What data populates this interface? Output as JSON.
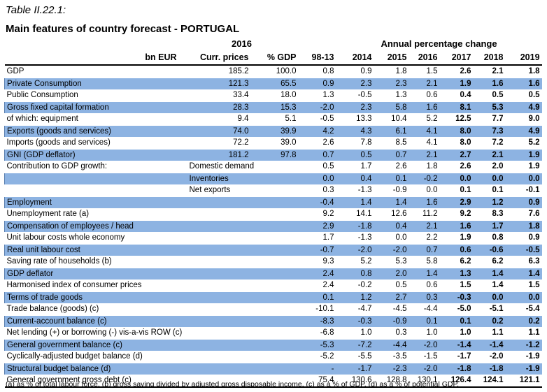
{
  "caption": "Table II.22.1:",
  "title": "Main features of country forecast - PORTUGAL",
  "header": {
    "year_2016": "2016",
    "annual_change": "Annual percentage change",
    "unit": "bn EUR",
    "curr_prices": "Curr. prices",
    "pct_gdp": "% GDP",
    "years": [
      "98-13",
      "2014",
      "2015",
      "2016",
      "2017",
      "2018",
      "2019"
    ]
  },
  "rows": [
    {
      "label": "GDP",
      "sub": "",
      "cp": "185.2",
      "pg": "100.0",
      "v": [
        "0.8",
        "0.9",
        "1.8",
        "1.5",
        "2.6",
        "2.1",
        "1.8"
      ],
      "band": false
    },
    {
      "label": "Private Consumption",
      "sub": "",
      "cp": "121.3",
      "pg": "65.5",
      "v": [
        "0.9",
        "2.3",
        "2.3",
        "2.1",
        "1.9",
        "1.6",
        "1.6"
      ],
      "band": true
    },
    {
      "label": "Public Consumption",
      "sub": "",
      "cp": "33.4",
      "pg": "18.0",
      "v": [
        "1.3",
        "-0.5",
        "1.3",
        "0.6",
        "0.4",
        "0.5",
        "0.5"
      ],
      "band": false
    },
    {
      "label": "Gross fixed capital formation",
      "sub": "",
      "cp": "28.3",
      "pg": "15.3",
      "v": [
        "-2.0",
        "2.3",
        "5.8",
        "1.6",
        "8.1",
        "5.3",
        "4.9"
      ],
      "band": true
    },
    {
      "label": "of which: equipment",
      "sub": "",
      "cp": "9.4",
      "pg": "5.1",
      "v": [
        "-0.5",
        "13.3",
        "10.4",
        "5.2",
        "12.5",
        "7.7",
        "9.0"
      ],
      "band": false
    },
    {
      "label": "Exports (goods and services)",
      "sub": "",
      "cp": "74.0",
      "pg": "39.9",
      "v": [
        "4.2",
        "4.3",
        "6.1",
        "4.1",
        "8.0",
        "7.3",
        "4.9"
      ],
      "band": true
    },
    {
      "label": "Imports (goods and services)",
      "sub": "",
      "cp": "72.2",
      "pg": "39.0",
      "v": [
        "2.6",
        "7.8",
        "8.5",
        "4.1",
        "8.0",
        "7.2",
        "5.2"
      ],
      "band": false
    },
    {
      "label": "GNI (GDP deflator)",
      "sub": "",
      "cp": "181.2",
      "pg": "97.8",
      "v": [
        "0.7",
        "0.5",
        "0.7",
        "2.1",
        "2.7",
        "2.1",
        "1.9"
      ],
      "band": true
    },
    {
      "label": "Contribution to GDP growth:",
      "sub": "Domestic demand",
      "cp": "",
      "pg": "",
      "v": [
        "0.5",
        "1.7",
        "2.6",
        "1.8",
        "2.6",
        "2.0",
        "1.9"
      ],
      "band": false
    },
    {
      "label": "",
      "sub": "Inventories",
      "cp": "",
      "pg": "",
      "v": [
        "0.0",
        "0.4",
        "0.1",
        "-0.2",
        "0.0",
        "0.0",
        "0.0"
      ],
      "band": true
    },
    {
      "label": "",
      "sub": "Net exports",
      "cp": "",
      "pg": "",
      "v": [
        "0.3",
        "-1.3",
        "-0.9",
        "0.0",
        "0.1",
        "0.1",
        "-0.1"
      ],
      "band": false
    },
    {
      "label": "Employment",
      "sub": "",
      "cp": "",
      "pg": "",
      "v": [
        "-0.4",
        "1.4",
        "1.4",
        "1.6",
        "2.9",
        "1.2",
        "0.9"
      ],
      "band": true
    },
    {
      "label": "Unemployment rate (a)",
      "sub": "",
      "cp": "",
      "pg": "",
      "v": [
        "9.2",
        "14.1",
        "12.6",
        "11.2",
        "9.2",
        "8.3",
        "7.6"
      ],
      "band": false
    },
    {
      "label": "Compensation of employees / head",
      "sub": "",
      "cp": "",
      "pg": "",
      "v": [
        "2.9",
        "-1.8",
        "0.4",
        "2.1",
        "1.6",
        "1.7",
        "1.8"
      ],
      "band": true
    },
    {
      "label": "Unit labour costs whole economy",
      "sub": "",
      "cp": "",
      "pg": "",
      "v": [
        "1.7",
        "-1.3",
        "0.0",
        "2.2",
        "1.9",
        "0.8",
        "0.9"
      ],
      "band": false
    },
    {
      "label": "Real unit labour cost",
      "sub": "",
      "cp": "",
      "pg": "",
      "v": [
        "-0.7",
        "-2.0",
        "-2.0",
        "0.7",
        "0.6",
        "-0.6",
        "-0.5"
      ],
      "band": true
    },
    {
      "label": "Saving rate of households (b)",
      "sub": "",
      "cp": "",
      "pg": "",
      "v": [
        "9.3",
        "5.2",
        "5.3",
        "5.8",
        "6.2",
        "6.2",
        "6.3"
      ],
      "band": false
    },
    {
      "label": "GDP deflator",
      "sub": "",
      "cp": "",
      "pg": "",
      "v": [
        "2.4",
        "0.8",
        "2.0",
        "1.4",
        "1.3",
        "1.4",
        "1.4"
      ],
      "band": true
    },
    {
      "label": "Harmonised index of consumer prices",
      "sub": "",
      "cp": "",
      "pg": "",
      "v": [
        "2.4",
        "-0.2",
        "0.5",
        "0.6",
        "1.5",
        "1.4",
        "1.5"
      ],
      "band": false
    },
    {
      "label": "Terms of trade goods",
      "sub": "",
      "cp": "",
      "pg": "",
      "v": [
        "0.1",
        "1.2",
        "2.7",
        "0.3",
        "-0.3",
        "0.0",
        "0.0"
      ],
      "band": true
    },
    {
      "label": "Trade balance (goods) (c)",
      "sub": "",
      "cp": "",
      "pg": "",
      "v": [
        "-10.1",
        "-4.7",
        "-4.5",
        "-4.4",
        "-5.0",
        "-5.1",
        "-5.4"
      ],
      "band": false
    },
    {
      "label": "Current-account balance (c)",
      "sub": "",
      "cp": "",
      "pg": "",
      "v": [
        "-8.3",
        "-0.3",
        "-0.9",
        "0.1",
        "0.1",
        "0.2",
        "0.2"
      ],
      "band": true
    },
    {
      "label": "Net lending (+) or borrowing (-) vis-a-vis ROW (c)",
      "sub": "",
      "cp": "",
      "pg": "",
      "v": [
        "-6.8",
        "1.0",
        "0.3",
        "1.0",
        "1.0",
        "1.1",
        "1.1"
      ],
      "band": false
    },
    {
      "label": "General government balance (c)",
      "sub": "",
      "cp": "",
      "pg": "",
      "v": [
        "-5.3",
        "-7.2",
        "-4.4",
        "-2.0",
        "-1.4",
        "-1.4",
        "-1.2"
      ],
      "band": true
    },
    {
      "label": "Cyclically-adjusted budget balance (d)",
      "sub": "",
      "cp": "",
      "pg": "",
      "v": [
        "-5.2",
        "-5.5",
        "-3.5",
        "-1.5",
        "-1.7",
        "-2.0",
        "-1.9"
      ],
      "band": false
    },
    {
      "label": "Structural budget balance (d)",
      "sub": "",
      "cp": "",
      "pg": "",
      "v": [
        "-",
        "-1.7",
        "-2.3",
        "-2.0",
        "-1.8",
        "-1.8",
        "-1.9"
      ],
      "band": true
    },
    {
      "label": "General government gross debt (c)",
      "sub": "",
      "cp": "",
      "pg": "",
      "v": [
        "75.4",
        "130.6",
        "128.8",
        "130.1",
        "126.4",
        "124.1",
        "121.1"
      ],
      "band": false
    }
  ],
  "footnote": "(a) as % of total labour force. (b) gross saving divided by adjusted gross disposable income. (c) as a % of GDP. (d) as a % of potential GDP."
}
